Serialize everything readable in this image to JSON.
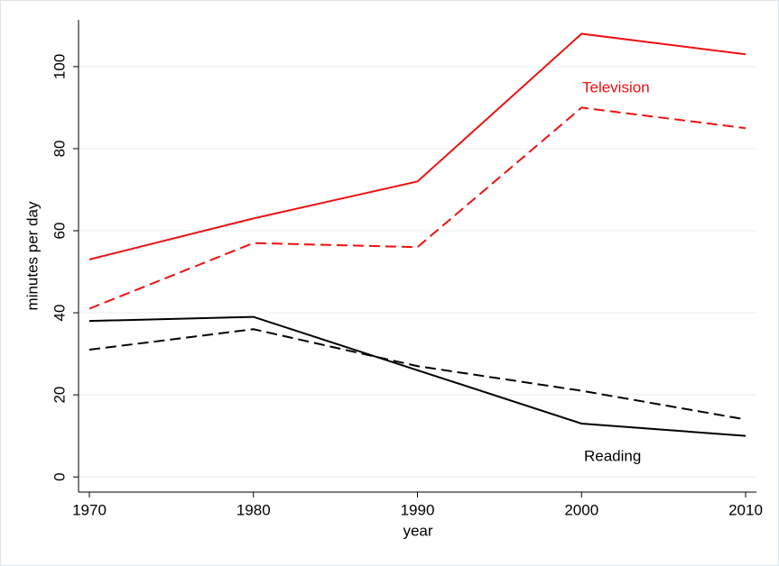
{
  "chart_data": {
    "type": "line",
    "x_label": "year",
    "y_label": "minutes per day",
    "x": [
      1970,
      1980,
      1990,
      2000,
      2010
    ],
    "series": [
      {
        "color": "#ee1111",
        "dash": "solid",
        "values": [
          53,
          63,
          72,
          108,
          103
        ]
      },
      {
        "color": "#ee1111",
        "dash": "dashed",
        "values": [
          41,
          57,
          56,
          90,
          85
        ]
      },
      {
        "color": "#000000",
        "dash": "solid",
        "values": [
          38,
          39,
          26,
          13,
          10
        ]
      },
      {
        "color": "#000000",
        "dash": "dashed",
        "values": [
          31,
          36,
          27,
          21,
          14
        ]
      }
    ],
    "annotations": [
      {
        "text": "Television",
        "color": "#ee1111"
      },
      {
        "text": "Reading",
        "color": "#000000"
      }
    ],
    "xlim": [
      1969.34,
      2010.66
    ],
    "xticks": [
      1970,
      1980,
      1990,
      2000,
      2010
    ],
    "ylim": [
      -3.7,
      111.4
    ],
    "yticks": [
      0,
      20,
      40,
      60,
      80,
      100
    ],
    "grid": true
  }
}
